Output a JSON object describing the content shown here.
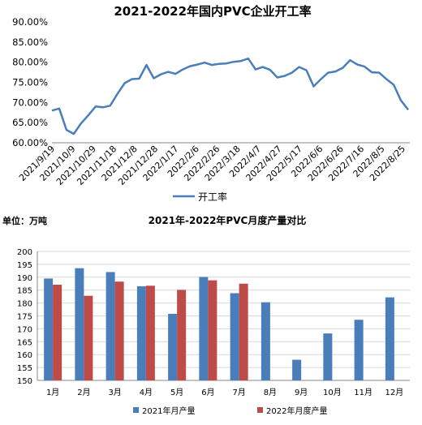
{
  "chart_data": [
    {
      "type": "line",
      "title": "2021-2022年国内PVC企业开工率",
      "xlabel": "",
      "ylabel": "",
      "ylim": [
        60,
        90
      ],
      "yticks": [
        "60.00%",
        "65.00%",
        "70.00%",
        "75.00%",
        "80.00%",
        "85.00%",
        "90.00%"
      ],
      "ytick_values": [
        60,
        65,
        70,
        75,
        80,
        85,
        90
      ],
      "x_tick_labels": [
        "2021/9/19",
        "2021/10/9",
        "2021/10/29",
        "2021/11/18",
        "2021/12/8",
        "2021/12/28",
        "2022/1/17",
        "2022/2/6",
        "2022/2/26",
        "2022/3/18",
        "2022/4/7",
        "2022/4/27",
        "2022/5/17",
        "2022/6/6",
        "2022/6/26",
        "2022/7/16",
        "2022/8/5",
        "2022/8/25"
      ],
      "grid": false,
      "legend_position": "bottom",
      "color": "#4a7ebb",
      "series": [
        {
          "name": "开工率",
          "values": [
            68.0,
            68.5,
            63.2,
            62.2,
            64.8,
            66.8,
            69.0,
            68.8,
            69.2,
            72.1,
            74.8,
            75.8,
            75.9,
            79.3,
            76.0,
            77.0,
            77.6,
            77.1,
            78.2,
            79.0,
            79.4,
            79.9,
            79.3,
            79.6,
            79.7,
            80.1,
            80.3,
            80.9,
            78.2,
            78.8,
            78.1,
            76.2,
            76.6,
            77.4,
            78.8,
            78.0,
            74.0,
            75.8,
            77.4,
            77.7,
            78.6,
            80.5,
            79.4,
            78.9,
            77.5,
            77.4,
            75.8,
            74.4,
            70.5,
            68.2
          ]
        }
      ]
    },
    {
      "type": "bar",
      "title": "2021年-2022年PVC月度产量对比",
      "unit_label": "单位：万吨",
      "xlabel": "",
      "ylabel": "",
      "ylim": [
        150,
        200
      ],
      "ytick_values": [
        150,
        155,
        160,
        165,
        170,
        175,
        180,
        185,
        190,
        195,
        200
      ],
      "grid": true,
      "legend_position": "bottom",
      "categories": [
        "1月",
        "2月",
        "3月",
        "4月",
        "5月",
        "6月",
        "7月",
        "8月",
        "9月",
        "10月",
        "11月",
        "12月"
      ],
      "series": [
        {
          "name": "2021年月产量",
          "color": "#4a7ebb",
          "values": [
            189.5,
            193.5,
            192.0,
            186.5,
            175.8,
            190.1,
            183.8,
            180.3,
            158.0,
            168.2,
            173.5,
            182.2
          ]
        },
        {
          "name": "2022年月度产量",
          "color": "#be4b48",
          "values": [
            187.1,
            182.8,
            188.3,
            186.7,
            185.1,
            188.8,
            187.5,
            null,
            null,
            null,
            null,
            null
          ]
        }
      ]
    }
  ]
}
